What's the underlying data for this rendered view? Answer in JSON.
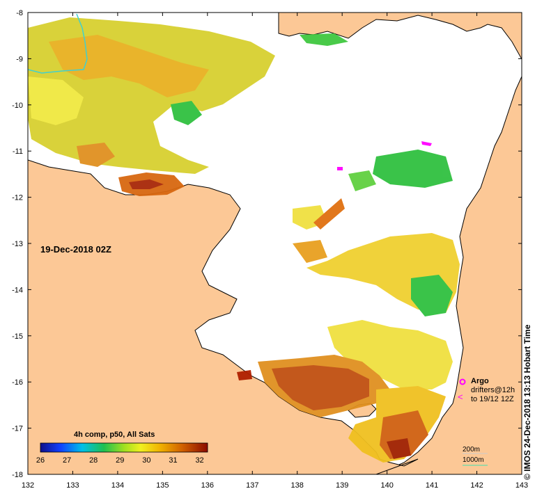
{
  "map": {
    "date_label": "19-Dec-2018 02Z",
    "credit": "© IMOS 24-Dec-2018 13:13 Hobart Time",
    "x_ticks": [
      "132",
      "133",
      "134",
      "135",
      "136",
      "137",
      "138",
      "139",
      "140",
      "141",
      "142",
      "143"
    ],
    "y_ticks": [
      "-8",
      "-9",
      "-10",
      "-11",
      "-12",
      "-13",
      "-14",
      "-15",
      "-16",
      "-17",
      "-18"
    ],
    "colors": {
      "land": "#fcc896",
      "ocean_nodata": "#ffffff",
      "coast": "#000000",
      "argo": "#ff00ff",
      "depth_1000m": "#40e0b0"
    }
  },
  "colorbar": {
    "title": "4h comp, p50, All Sats",
    "ticks": [
      "26",
      "27",
      "28",
      "29",
      "30",
      "31",
      "32"
    ],
    "range": [
      26,
      32.3
    ]
  },
  "legend": {
    "argo_label": "Argo",
    "drifters_label": "drifters@12h",
    "drifters_to": "to 19/12 12Z",
    "depth_200": "200m",
    "depth_1000": "1000m"
  }
}
